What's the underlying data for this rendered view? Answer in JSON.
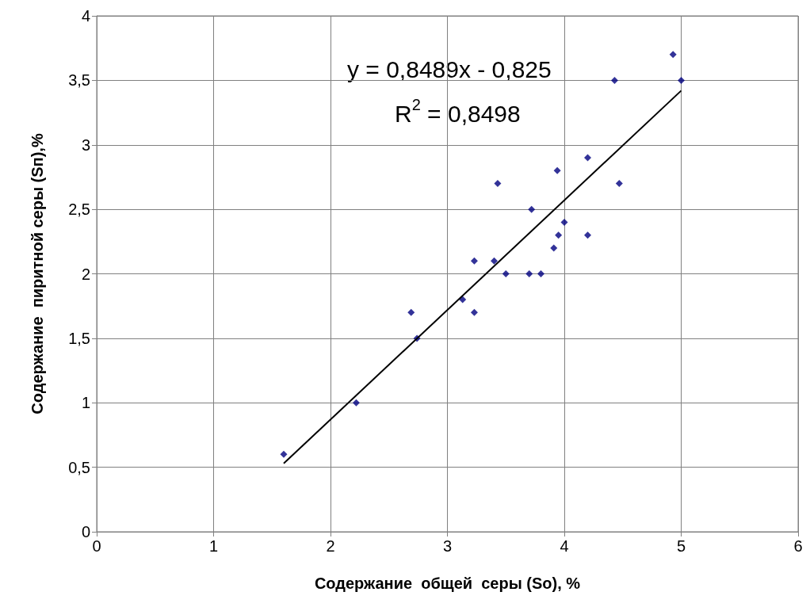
{
  "chart_data": {
    "type": "scatter",
    "xlabel": "Содержание  общей  серы (So), %",
    "ylabel": "Содержание  пиритной серы (Sп),%",
    "annotations": [
      "y = 0,8489x - 0,825",
      "R$^{2}$ = 0,8498"
    ],
    "series": [
      {
        "color": "#000080",
        "marker": "diamond",
        "x": [
          1.6,
          2.22,
          2.69,
          2.74,
          3.13,
          3.23,
          3.23,
          3.43,
          3.4,
          3.5,
          3.7,
          3.72,
          3.8,
          3.91,
          3.94,
          3.95,
          4.0,
          4.2,
          4.2,
          4.43,
          4.47,
          4.93,
          5.0
        ],
        "values": [
          0.6,
          1.0,
          1.7,
          1.5,
          1.8,
          2.1,
          1.7,
          2.7,
          2.1,
          2.0,
          2.0,
          2.5,
          2.0,
          2.2,
          2.8,
          2.3,
          2.4,
          2.9,
          2.3,
          3.5,
          2.7,
          3.7,
          3.5
        ]
      },
      {
        "type": "line",
        "color": "#000000",
        "marker": "none",
        "x": [
          1.6,
          5.0
        ],
        "values": [
          0.53,
          3.42
        ]
      }
    ],
    "xlim": [
      0,
      6
    ],
    "xticks": [
      0,
      1,
      2,
      3,
      4,
      5,
      6
    ],
    "ylim": [
      0,
      4
    ],
    "yticks": [
      0,
      {
        "value": 0.5,
        "label": "0,5"
      },
      1,
      {
        "value": 1.5,
        "label": "1,5"
      },
      2,
      {
        "value": 2.5,
        "label": "2,5"
      },
      3,
      {
        "value": 3.5,
        "label": "3,5"
      },
      4
    ],
    "grid": true
  }
}
